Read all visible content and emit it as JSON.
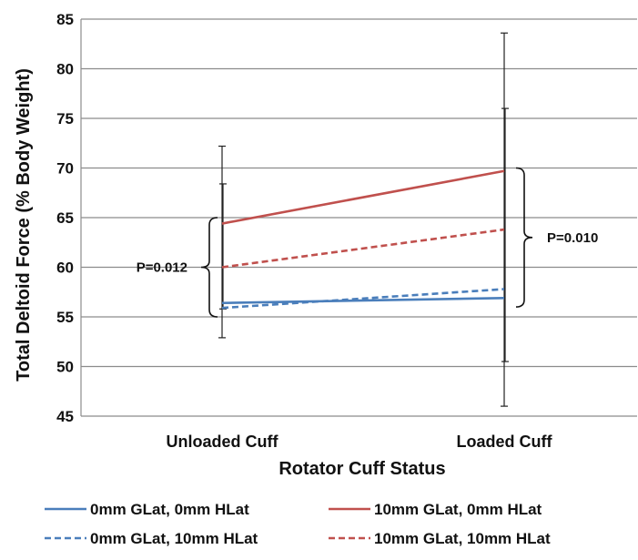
{
  "chart_data": {
    "type": "line",
    "categories": [
      "Unloaded Cuff",
      "Loaded Cuff"
    ],
    "xlabel": "Rotator Cuff Status",
    "ylabel": "Total Deltoid Force (% Body Weight)",
    "ylim": [
      45,
      85
    ],
    "yticks": [
      45,
      50,
      55,
      60,
      65,
      70,
      75,
      80,
      85
    ],
    "grid": true,
    "legend_position": "bottom",
    "series": [
      {
        "name": "0mm GLat, 0mm HLat",
        "values": [
          56.4,
          56.9
        ],
        "color": "#4a7ebb",
        "dashed": false
      },
      {
        "name": "10mm GLat, 0mm HLat",
        "values": [
          64.4,
          69.7
        ],
        "color": "#c0504d",
        "dashed": false
      },
      {
        "name": "0mm GLat, 10mm HLat",
        "values": [
          55.9,
          57.8
        ],
        "color": "#4a7ebb",
        "dashed": true
      },
      {
        "name": "10mm GLat, 10mm HLat",
        "values": [
          60.0,
          63.8
        ],
        "color": "#c0504d",
        "dashed": true
      }
    ],
    "error_bars": [
      {
        "category": "Unloaded Cuff",
        "ranges": [
          [
            52.9,
            72.2
          ],
          [
            55.8,
            68.4
          ]
        ]
      },
      {
        "category": "Loaded Cuff",
        "ranges": [
          [
            46.0,
            83.6
          ],
          [
            50.5,
            76.0
          ]
        ]
      }
    ],
    "annotations": [
      {
        "text": "P=0.012",
        "category": "Unloaded Cuff",
        "side": "left",
        "y_range": [
          55.0,
          65.0
        ]
      },
      {
        "text": "P=0.010",
        "category": "Loaded Cuff",
        "side": "right",
        "y_range": [
          56.0,
          70.0
        ]
      }
    ]
  }
}
